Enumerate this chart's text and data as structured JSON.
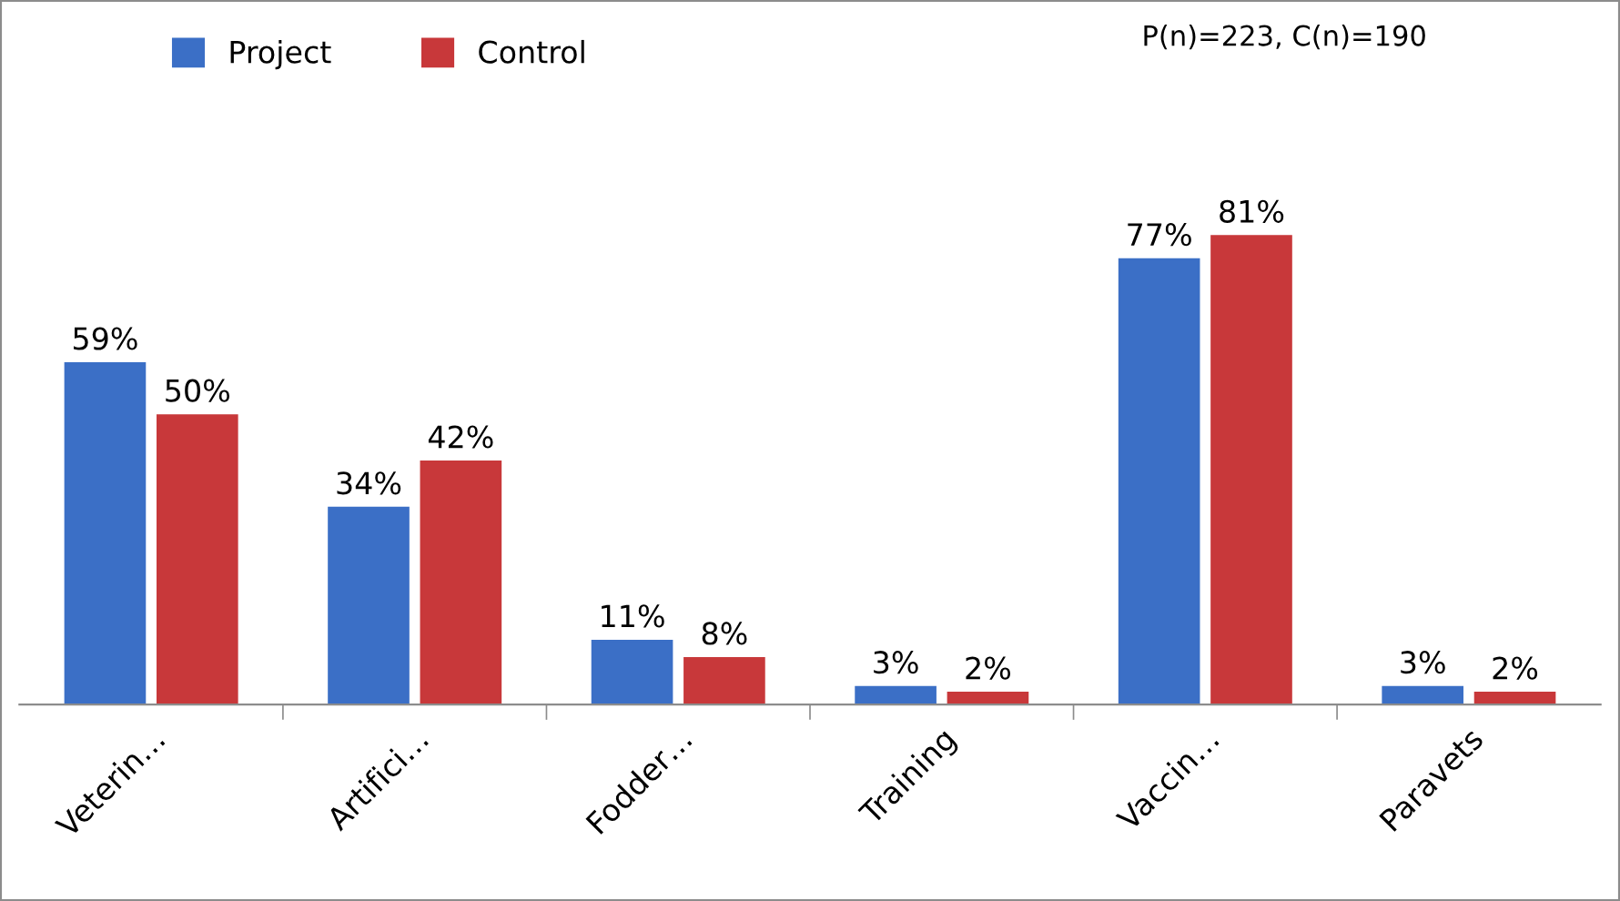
{
  "chart_data": {
    "type": "bar",
    "categories": [
      "Veterin…",
      "Artifici…",
      "Fodder…",
      "Training",
      "Vaccin…",
      "Paravets"
    ],
    "series": [
      {
        "name": "Project",
        "color": "#3b6fc6",
        "values": [
          59,
          34,
          11,
          3,
          77,
          3
        ],
        "value_labels": [
          "59%",
          "34%",
          "11%",
          "3%",
          "77%",
          "3%"
        ]
      },
      {
        "name": "Control",
        "color": "#c8383a",
        "values": [
          50,
          42,
          8,
          2,
          81,
          2
        ],
        "value_labels": [
          "50%",
          "42%",
          "8%",
          "2%",
          "81%",
          "2%"
        ]
      }
    ],
    "annotations": [
      "P(n)=223, C(n)=190"
    ],
    "legend": "top left",
    "grid": false
  }
}
